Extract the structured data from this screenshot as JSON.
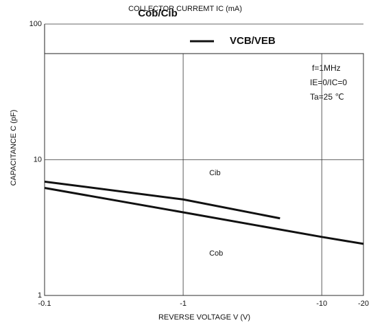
{
  "chart_data": {
    "type": "line",
    "title": "COLLECTOR CURREMT   IC   (mA)",
    "subtitle": "Cob/Cib",
    "legend_label": "VCB/VEB",
    "x_label": "REVERSE  VOLTAGE   V   (V)",
    "y_label": "CAPACITANCE   C   (pF)",
    "annotations": [
      "f=1MHz",
      "IE=0/IC=0",
      "Ta=25 ℃"
    ],
    "log_x": true,
    "log_y": true,
    "xlim": [
      -0.1,
      -20
    ],
    "ylim": [
      1,
      100
    ],
    "xticks": [
      -0.1,
      -1,
      -10,
      -20
    ],
    "yticks": [
      1,
      10,
      100
    ],
    "grid": true,
    "series": [
      {
        "name": "Cib",
        "color": "#111111",
        "x": [
          -0.1,
          -1,
          -5
        ],
        "values": [
          6.9,
          5.1,
          3.7
        ]
      },
      {
        "name": "Cob",
        "color": "#111111",
        "x": [
          -0.1,
          -1,
          -10,
          -20
        ],
        "values": [
          6.2,
          4.1,
          2.7,
          2.4
        ]
      }
    ]
  }
}
